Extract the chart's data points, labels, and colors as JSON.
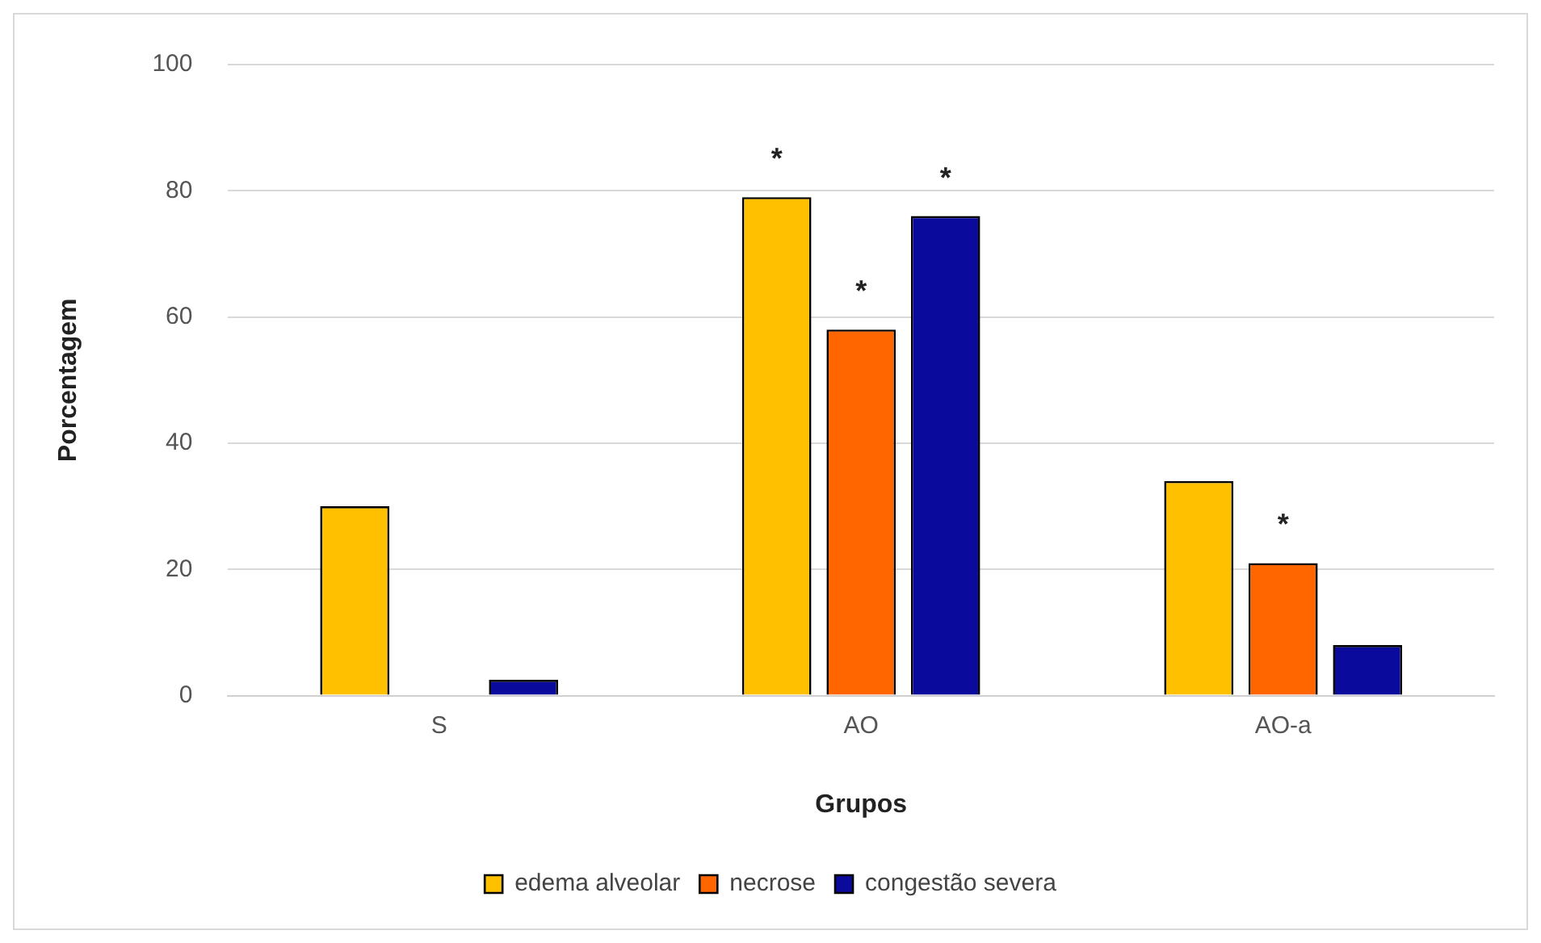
{
  "chart_data": {
    "type": "bar",
    "xlabel": "Grupos",
    "ylabel": "Porcentagem",
    "categories": [
      "S",
      "AO",
      "AO-a"
    ],
    "series": [
      {
        "name": "edema alveolar",
        "color": "#ffc000",
        "values": [
          30,
          79,
          34
        ],
        "value_labels": [
          null,
          "*",
          null
        ]
      },
      {
        "name": "necrose",
        "color": "#ff6600",
        "values": [
          0,
          58,
          21
        ],
        "value_labels": [
          null,
          "*",
          "*"
        ]
      },
      {
        "name": "congestão severa",
        "color": "#0a0a9c",
        "values": [
          2.5,
          76,
          8
        ],
        "value_labels": [
          null,
          "*",
          null
        ]
      }
    ],
    "ylim": [
      0,
      100
    ],
    "yticks": [
      0,
      20,
      40,
      60,
      80,
      100
    ],
    "grid": "y",
    "legend": "bottom"
  }
}
